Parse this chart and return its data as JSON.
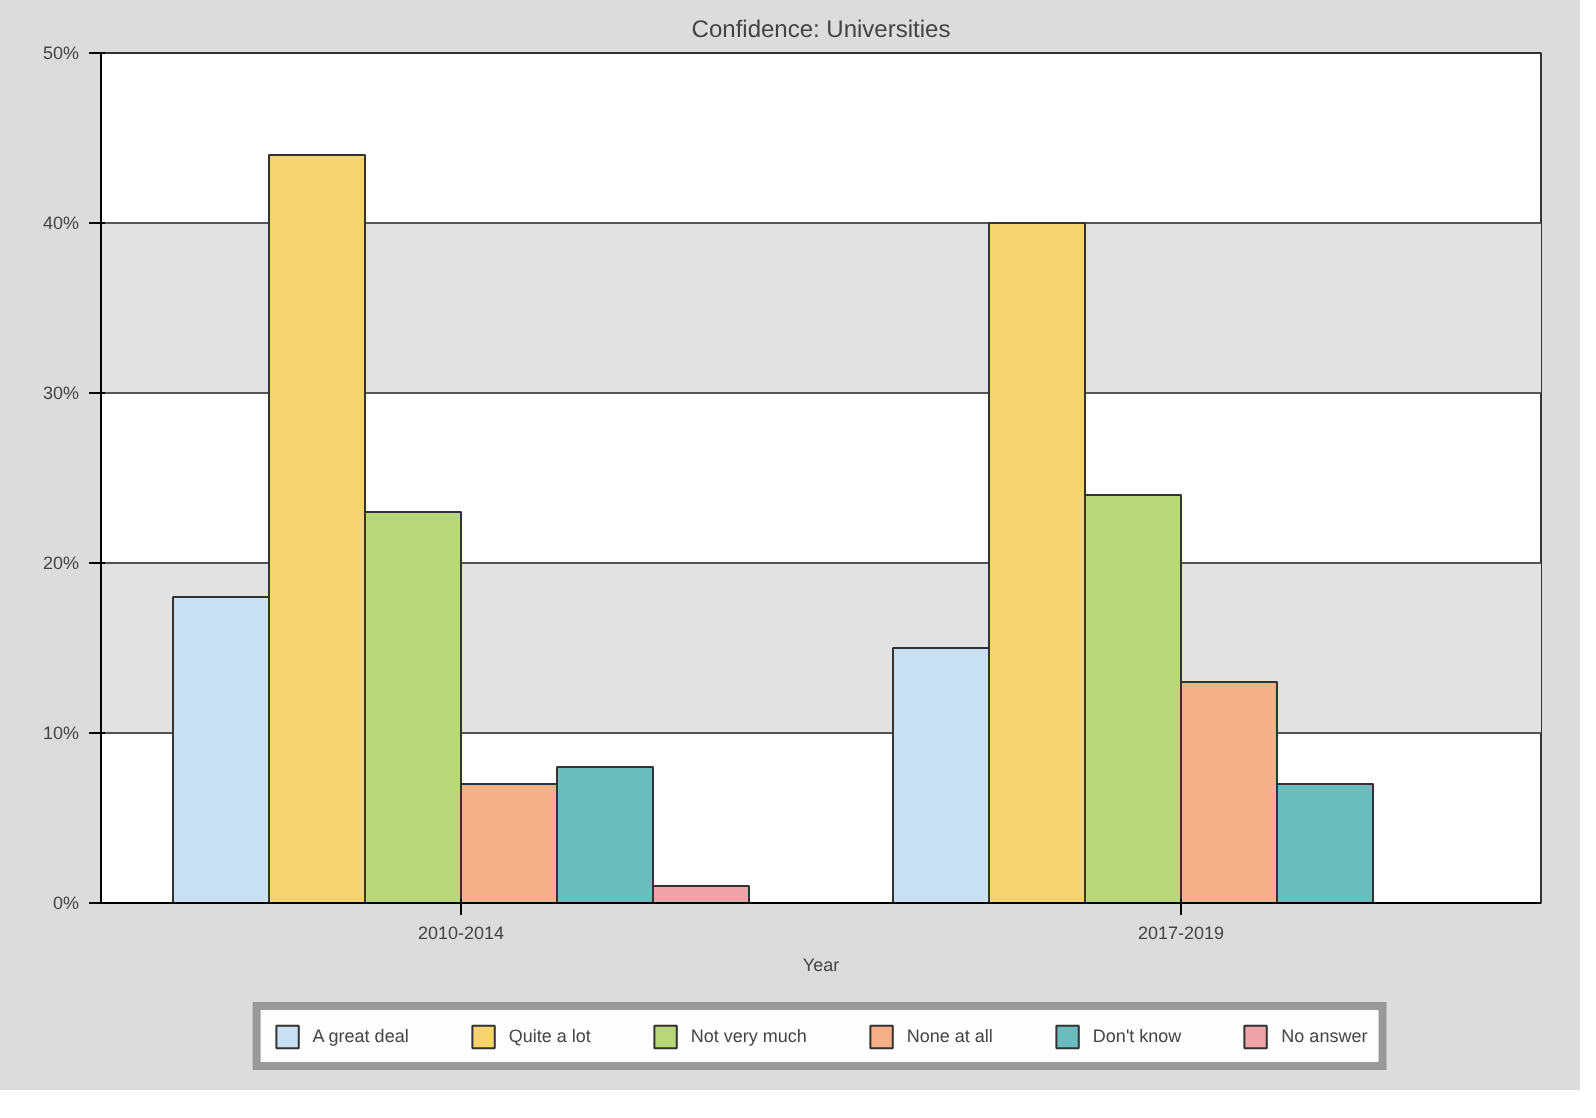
{
  "chart_data": {
    "type": "bar",
    "title": "Confidence: Universities",
    "xlabel": "Year",
    "categories": [
      "2010-2014",
      "2017-2019"
    ],
    "series": [
      {
        "name": "A great deal",
        "color": "#c9dff2",
        "values": [
          18,
          15
        ]
      },
      {
        "name": "Quite a lot",
        "color": "#f5d36e",
        "values": [
          44,
          40
        ]
      },
      {
        "name": "Not very much",
        "color": "#b8d67a",
        "values": [
          23,
          24
        ]
      },
      {
        "name": "None at all",
        "color": "#f5b08a",
        "values": [
          7,
          13
        ]
      },
      {
        "name": "Don't know",
        "color": "#6bbdbd",
        "values": [
          8,
          7
        ]
      },
      {
        "name": "No answer",
        "color": "#eea4a8",
        "values": [
          1,
          null
        ]
      }
    ],
    "ylim": [
      0,
      50
    ],
    "yticks": [
      {
        "value": 0,
        "label": "0%"
      },
      {
        "value": 10,
        "label": "10%"
      },
      {
        "value": 20,
        "label": "20%"
      },
      {
        "value": 30,
        "label": "30%"
      },
      {
        "value": 40,
        "label": "40%"
      },
      {
        "value": 50,
        "label": "50%"
      }
    ],
    "grid": "y",
    "legend": "bottom"
  }
}
